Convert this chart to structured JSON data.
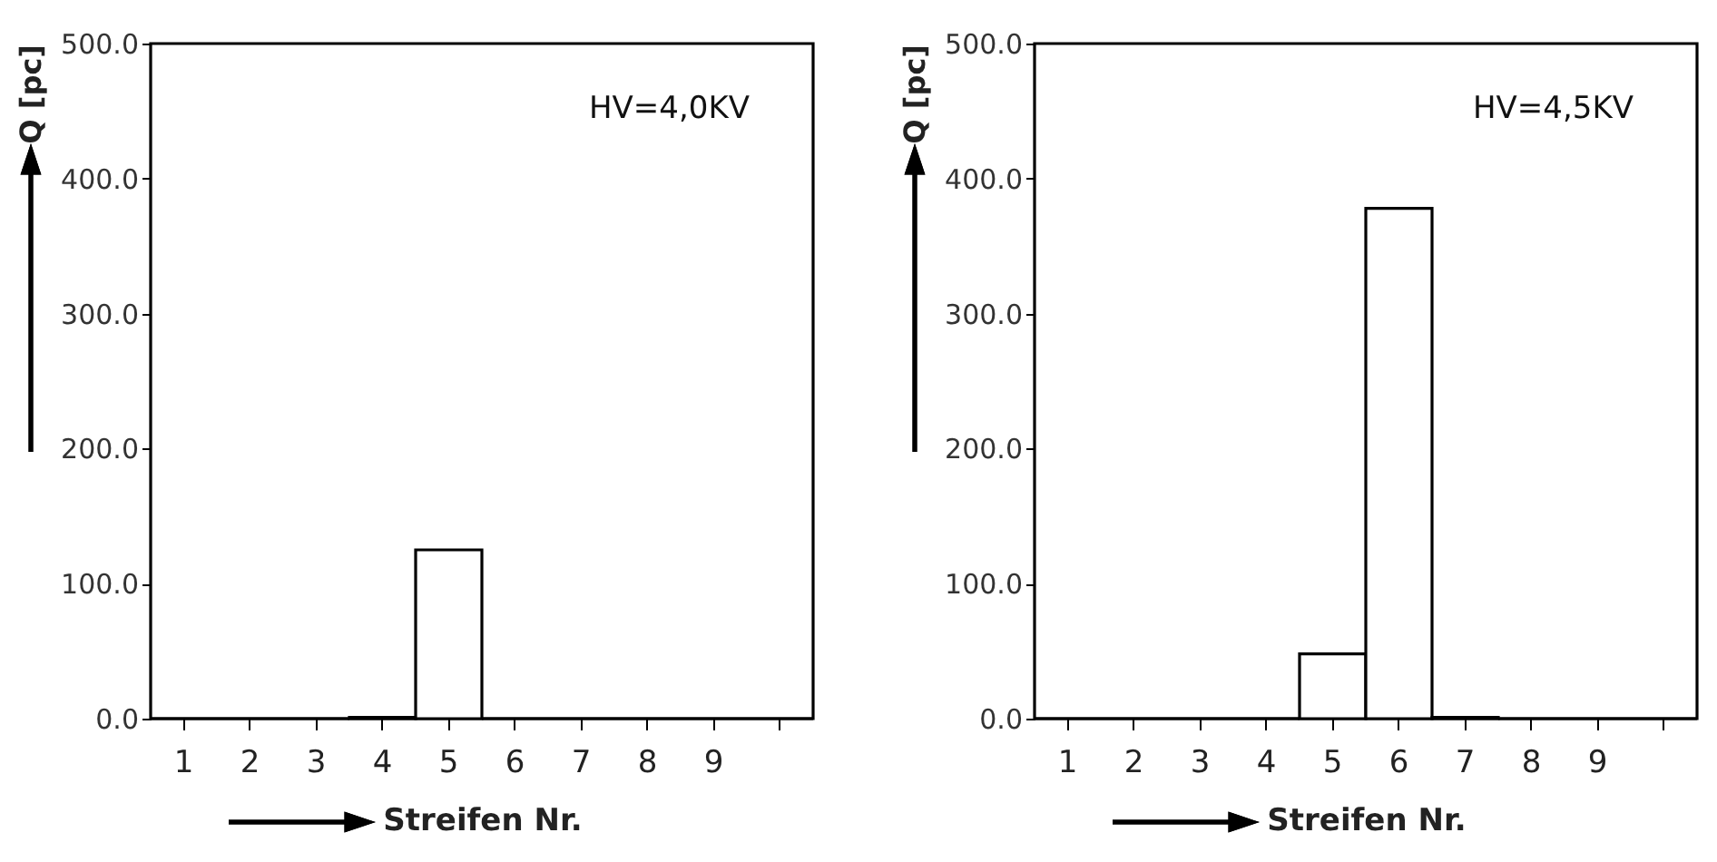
{
  "chart_data": [
    {
      "type": "bar",
      "categories": [
        "1",
        "2",
        "3",
        "4",
        "5",
        "6",
        "7",
        "8",
        "9",
        null
      ],
      "values": [
        0,
        0,
        0,
        1,
        125,
        0,
        0,
        0,
        0,
        0
      ],
      "color": "#000000",
      "ylim": [
        0,
        500
      ],
      "yticks": [
        {
          "value": 0,
          "label": "0.0"
        },
        {
          "value": 100,
          "label": "100.0"
        },
        {
          "value": 200,
          "label": "200.0"
        },
        {
          "value": 300,
          "label": "300.0"
        },
        {
          "value": 400,
          "label": "400.0"
        },
        {
          "value": 500,
          "label": "500.0"
        }
      ],
      "xlabel": "Streifen Nr.",
      "ylabel": "Q [pc]",
      "annotations": [
        "HV=4,0KV"
      ]
    },
    {
      "type": "bar",
      "categories": [
        "1",
        "2",
        "3",
        "4",
        "5",
        "6",
        "7",
        "8",
        "9",
        null
      ],
      "values": [
        0,
        0,
        0,
        0,
        48,
        378,
        1,
        0,
        0,
        0
      ],
      "color": "#000000",
      "ylim": [
        0,
        500
      ],
      "yticks": [
        {
          "value": 0,
          "label": "0.0"
        },
        {
          "value": 100,
          "label": "100.0"
        },
        {
          "value": 200,
          "label": "200.0"
        },
        {
          "value": 300,
          "label": "300.0"
        },
        {
          "value": 400,
          "label": "400.0"
        },
        {
          "value": 500,
          "label": "500.0"
        }
      ],
      "xlabel": "Streifen Nr.",
      "ylabel": "Q [pc]",
      "annotations": [
        "HV=4,5KV"
      ]
    }
  ]
}
